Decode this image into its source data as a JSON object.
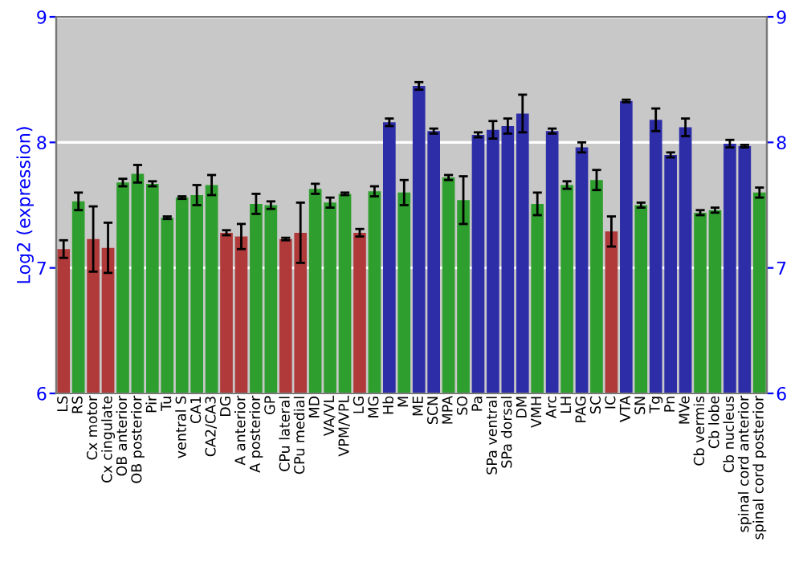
{
  "chart_data": {
    "type": "bar",
    "ylabel": "Log2 (expression)",
    "categories": [
      "LS",
      "RS",
      "Cx motor",
      "Cx cingulate",
      "OB anterior",
      "OB posterior",
      "Pir",
      "Tu",
      "ventral S",
      "CA1",
      "CA2/CA3",
      "DG",
      "A anterior",
      "A posterior",
      "GP",
      "CPu lateral",
      "CPu medial",
      "MD",
      "VA/VL",
      "VPM/VPL",
      "LG",
      "MG",
      "Hb",
      "M",
      "ME",
      "SCN",
      "MPA",
      "SO",
      "Pa",
      "SPa ventral",
      "SPa dorsal",
      "DM",
      "VMH",
      "Arc",
      "LH",
      "PAG",
      "SC",
      "IC",
      "VTA",
      "SN",
      "Tg",
      "Pn",
      "MVe",
      "Cb vermis",
      "Cb lobe",
      "Cb nucleus",
      "spinal cord anterior",
      "spinal cord posterior"
    ],
    "values": [
      7.15,
      7.53,
      7.23,
      7.16,
      7.68,
      7.75,
      7.67,
      7.4,
      7.56,
      7.58,
      7.66,
      7.28,
      7.25,
      7.51,
      7.5,
      7.23,
      7.28,
      7.63,
      7.52,
      7.59,
      7.28,
      7.61,
      8.16,
      7.6,
      8.45,
      8.09,
      7.72,
      7.54,
      8.06,
      8.1,
      8.13,
      8.23,
      7.51,
      8.09,
      7.66,
      7.96,
      7.7,
      7.29,
      8.33,
      7.5,
      8.18,
      7.9,
      8.12,
      7.44,
      7.46,
      7.99,
      7.97,
      7.6
    ],
    "errors": [
      0.07,
      0.07,
      0.26,
      0.2,
      0.03,
      0.07,
      0.02,
      0.01,
      0.01,
      0.08,
      0.08,
      0.02,
      0.1,
      0.08,
      0.03,
      0.01,
      0.24,
      0.04,
      0.04,
      0.01,
      0.03,
      0.04,
      0.03,
      0.1,
      0.03,
      0.02,
      0.02,
      0.19,
      0.02,
      0.07,
      0.06,
      0.15,
      0.09,
      0.02,
      0.03,
      0.04,
      0.08,
      0.12,
      0.01,
      0.02,
      0.09,
      0.02,
      0.07,
      0.02,
      0.02,
      0.03,
      0.01,
      0.04
    ],
    "colors": [
      "#b03a3a",
      "#2e9e2e",
      "#b03a3a",
      "#b03a3a",
      "#2e9e2e",
      "#2e9e2e",
      "#2e9e2e",
      "#2e9e2e",
      "#2e9e2e",
      "#2e9e2e",
      "#2e9e2e",
      "#b03a3a",
      "#b03a3a",
      "#2e9e2e",
      "#2e9e2e",
      "#b03a3a",
      "#b03a3a",
      "#2e9e2e",
      "#2e9e2e",
      "#2e9e2e",
      "#b03a3a",
      "#2e9e2e",
      "#2d2da8",
      "#2e9e2e",
      "#2d2da8",
      "#2d2da8",
      "#2e9e2e",
      "#2e9e2e",
      "#2d2da8",
      "#2d2da8",
      "#2d2da8",
      "#2d2da8",
      "#2e9e2e",
      "#2d2da8",
      "#2e9e2e",
      "#2d2da8",
      "#2e9e2e",
      "#b03a3a",
      "#2d2da8",
      "#2e9e2e",
      "#2d2da8",
      "#2d2da8",
      "#2d2da8",
      "#2e9e2e",
      "#2e9e2e",
      "#2d2da8",
      "#2d2da8",
      "#2e9e2e"
    ],
    "ylim": [
      6,
      9
    ],
    "yticks": [
      6,
      7,
      8,
      9
    ],
    "y2lim": [
      6,
      9
    ],
    "y2ticks": [
      6,
      7,
      8,
      9
    ],
    "grid": "y"
  }
}
